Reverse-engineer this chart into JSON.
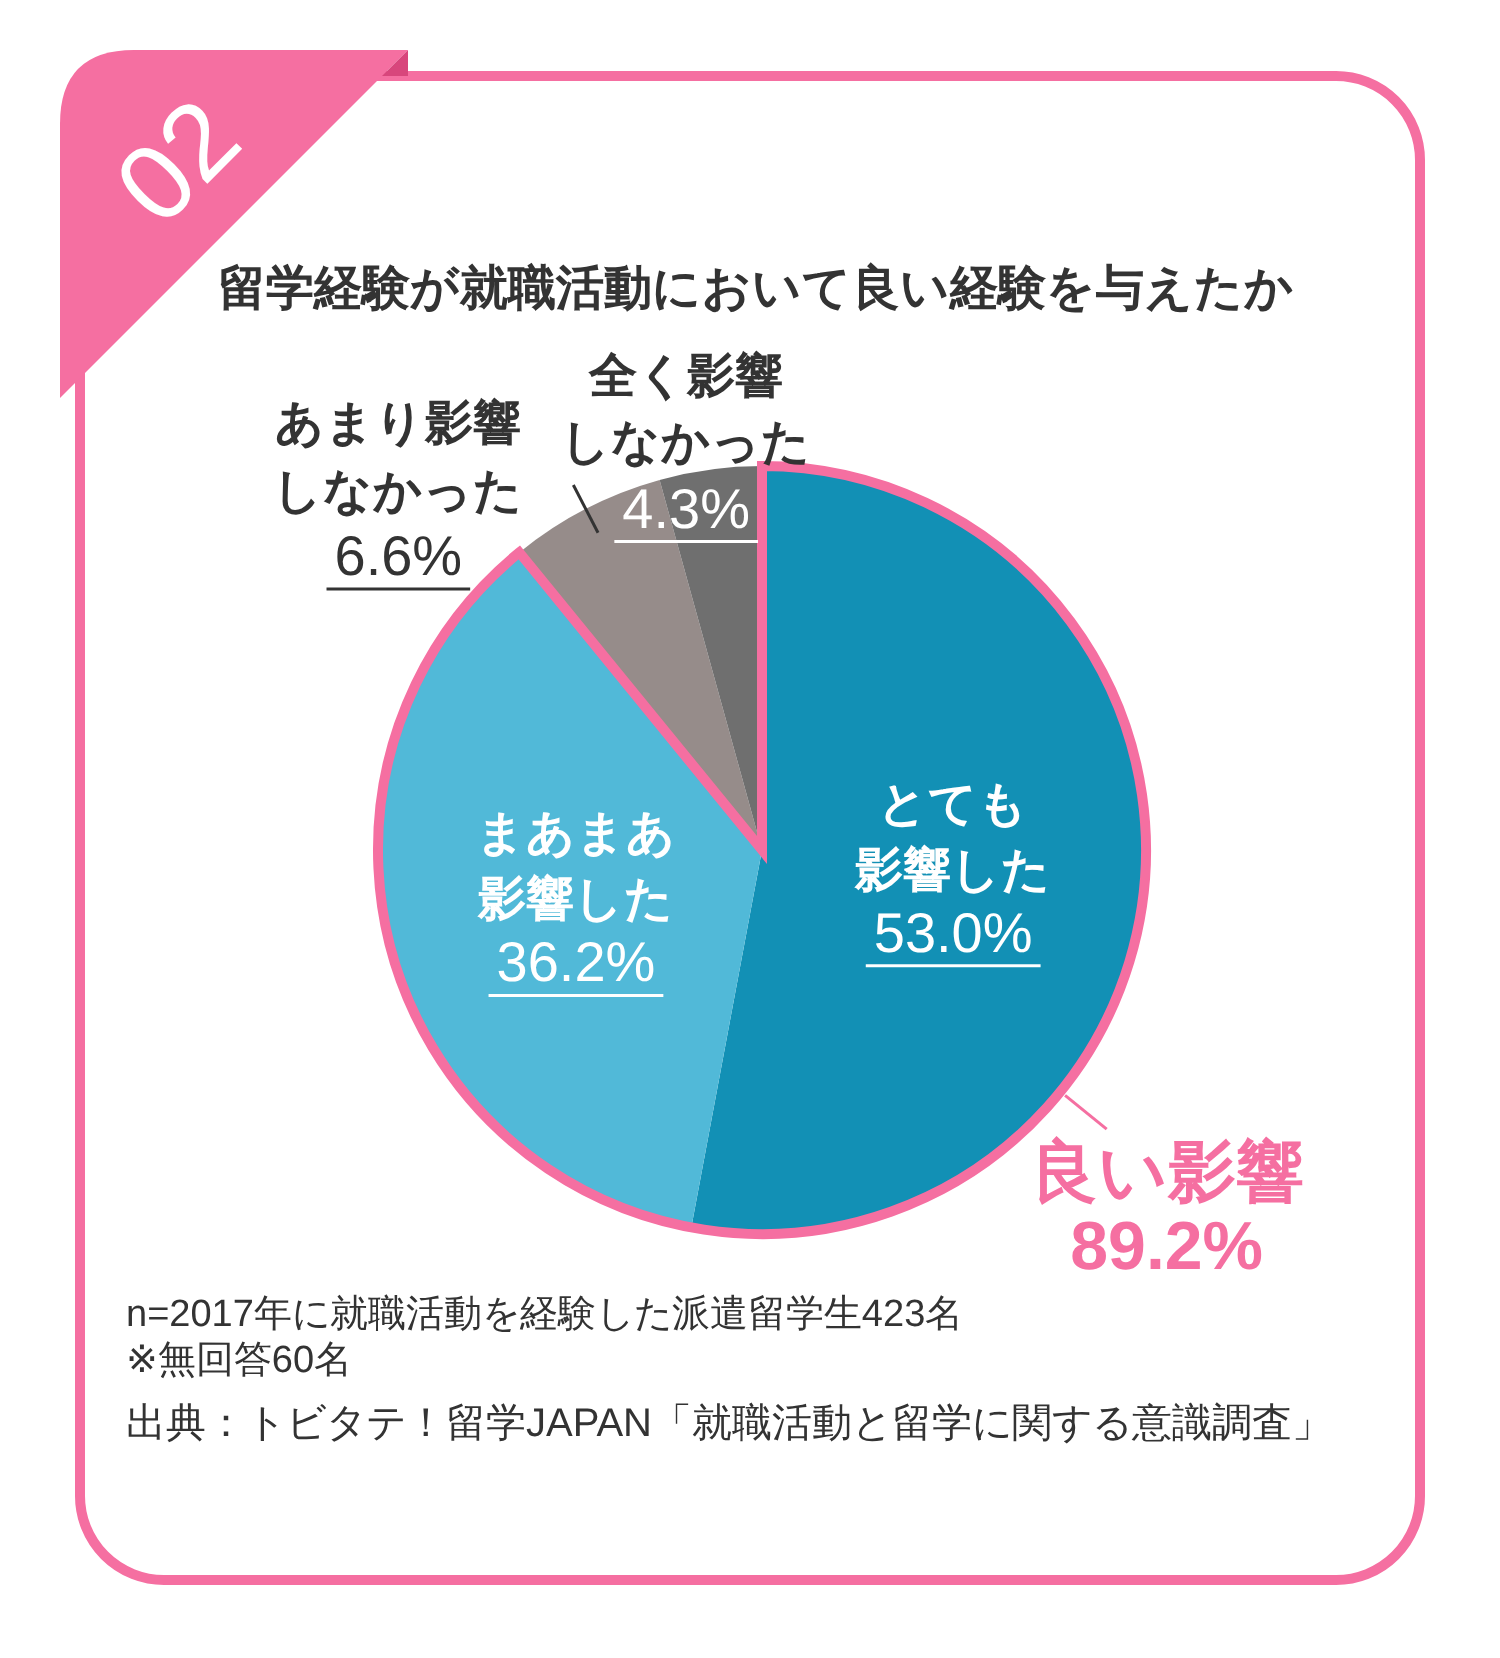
{
  "chart_data": {
    "type": "pie",
    "title": "留学経験が就職活動において良い経験を与えたか",
    "categories": [
      "とても影響した",
      "まあまあ影響した",
      "あまり影響しなかった",
      "全く影響しなかった"
    ],
    "values": [
      53.0,
      36.2,
      6.6,
      4.3
    ],
    "colors": [
      "#1290b5",
      "#51b9d8",
      "#968c8a",
      "#6f6f6f"
    ],
    "value_labels": [
      "53.0%",
      "36.2%",
      "6.6%",
      "4.3%"
    ],
    "annotations": [
      "02",
      "良い影響\n89.2%",
      "n=2017年に就職活動を経験した派遣留学生423名",
      "※無回答60名",
      "出典：トビタテ！留学JAPAN「就職活動と留学に関する意識調査」"
    ]
  }
}
